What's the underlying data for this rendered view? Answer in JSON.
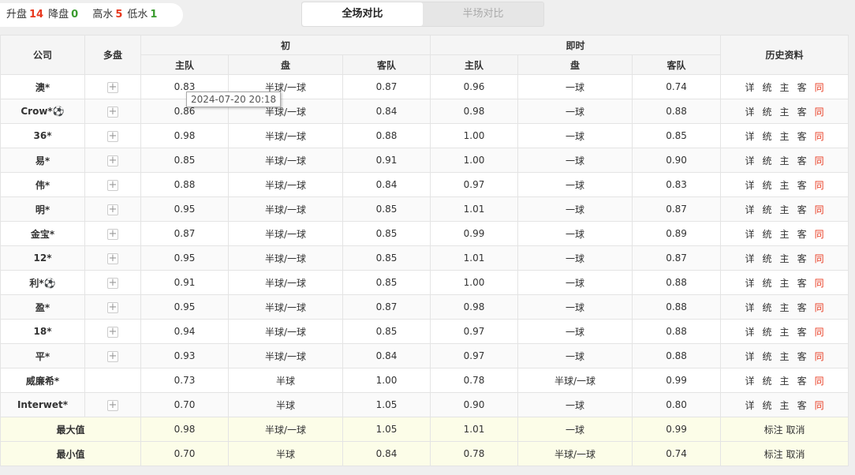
{
  "stats": {
    "up_label": "升盘",
    "up": "14",
    "down_label": "降盘",
    "down": "0",
    "high_label": "高水",
    "high": "5",
    "low_label": "低水",
    "low": "1"
  },
  "tabs": [
    "全场对比",
    "半场对比"
  ],
  "headers": {
    "company": "公司",
    "multi": "多盘",
    "initial": "初",
    "live": "即时",
    "home": "主队",
    "line": "盘",
    "away": "客队",
    "history": "历史资料"
  },
  "history_links": [
    "详",
    "统",
    "主",
    "客",
    "同"
  ],
  "rows": [
    [
      "澳*",
      true,
      "0.83",
      "半球/一球",
      "0.87",
      "0.96",
      "一球",
      "0.74"
    ],
    [
      "Crow*⚽",
      true,
      "0.86",
      "半球/一球",
      "0.84",
      "0.98",
      "一球",
      "0.88"
    ],
    [
      "36*",
      true,
      "0.98",
      "半球/一球",
      "0.88",
      "1.00",
      "一球",
      "0.85"
    ],
    [
      "易*",
      true,
      "0.85",
      "半球/一球",
      "0.91",
      "1.00",
      "一球",
      "0.90"
    ],
    [
      "伟*",
      true,
      "0.88",
      "半球/一球",
      "0.84",
      "0.97",
      "一球",
      "0.83"
    ],
    [
      "明*",
      true,
      "0.95",
      "半球/一球",
      "0.85",
      "1.01",
      "一球",
      "0.87"
    ],
    [
      "金宝*",
      true,
      "0.87",
      "半球/一球",
      "0.85",
      "0.99",
      "一球",
      "0.89"
    ],
    [
      "12*",
      true,
      "0.95",
      "半球/一球",
      "0.85",
      "1.01",
      "一球",
      "0.87"
    ],
    [
      "利*⚽",
      true,
      "0.91",
      "半球/一球",
      "0.85",
      "1.00",
      "一球",
      "0.88"
    ],
    [
      "盈*",
      true,
      "0.95",
      "半球/一球",
      "0.87",
      "0.98",
      "一球",
      "0.88"
    ],
    [
      "18*",
      true,
      "0.94",
      "半球/一球",
      "0.85",
      "0.97",
      "一球",
      "0.88"
    ],
    [
      "平*",
      true,
      "0.93",
      "半球/一球",
      "0.84",
      "0.97",
      "一球",
      "0.88"
    ],
    [
      "威廉希*",
      false,
      "0.73",
      "半球",
      "1.00",
      "0.78",
      "半球/一球",
      "0.99"
    ],
    [
      "Interwet*",
      true,
      "0.70",
      "半球",
      "1.05",
      "0.90",
      "一球",
      "0.80"
    ]
  ],
  "summary": [
    [
      "最大值",
      "0.98",
      "半球/一球",
      "1.05",
      "1.01",
      "一球",
      "0.99"
    ],
    [
      "最小值",
      "0.70",
      "半球",
      "0.84",
      "0.78",
      "半球/一球",
      "0.74"
    ]
  ],
  "summary_actions": "标注 取消",
  "tooltip": "2024-07-20 20:18"
}
